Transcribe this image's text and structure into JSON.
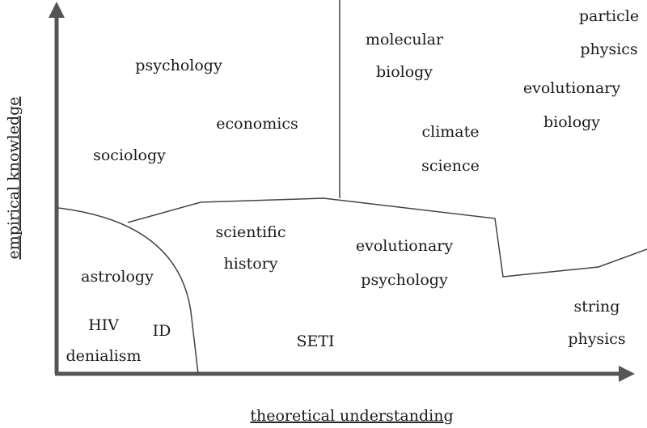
{
  "axes": {
    "y_label": "empirical knowledge",
    "x_label": "theoretical understanding"
  },
  "labels": [
    {
      "lines": [
        "psychology"
      ]
    },
    {
      "lines": [
        "economics"
      ]
    },
    {
      "lines": [
        "sociology"
      ]
    },
    {
      "lines": [
        "molecular",
        "biology"
      ]
    },
    {
      "lines": [
        "climate",
        "science"
      ]
    },
    {
      "lines": [
        "particle",
        "physics"
      ]
    },
    {
      "lines": [
        "evolutionary",
        "biology"
      ]
    },
    {
      "lines": [
        "scientific",
        "history"
      ]
    },
    {
      "lines": [
        "evolutionary",
        "psychology"
      ]
    },
    {
      "lines": [
        "astrology"
      ]
    },
    {
      "lines": [
        "HIV",
        "denialism"
      ]
    },
    {
      "lines": [
        "ID"
      ]
    },
    {
      "lines": [
        "SETI"
      ]
    },
    {
      "lines": [
        "string",
        "physics"
      ]
    }
  ]
}
